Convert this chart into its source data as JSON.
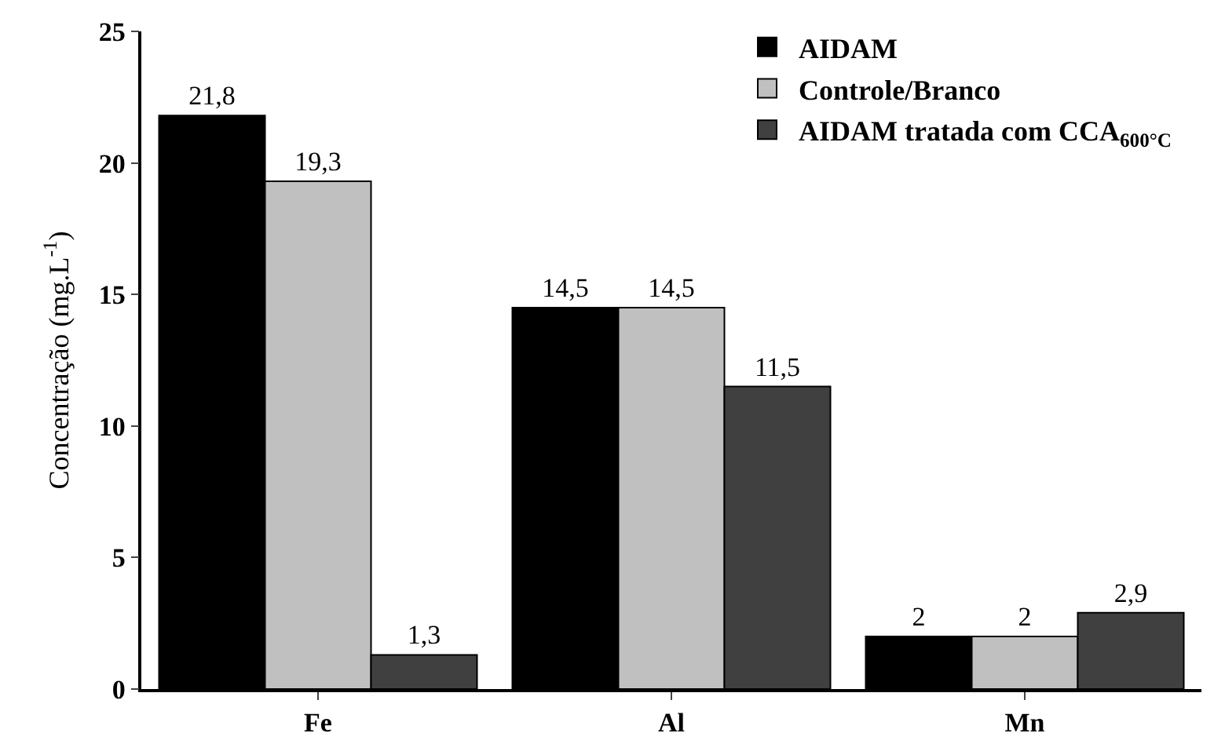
{
  "chart_data": {
    "type": "bar",
    "ylabel": "Concentração (mg.L$^{-1}$)",
    "categories": [
      "Fe",
      "Al",
      "Mn"
    ],
    "series": [
      {
        "name": "AIDAM",
        "color": "#000000",
        "values": [
          21.8,
          14.5,
          2
        ],
        "value_labels": [
          "21,8",
          "14,5",
          "2"
        ]
      },
      {
        "name": "Controle/Branco",
        "color": "#c0c0c0",
        "values": [
          19.3,
          14.5,
          2
        ],
        "value_labels": [
          "19,3",
          "14,5",
          "2"
        ]
      },
      {
        "name": "AIDAM tratada com CCA$_{600°C}$",
        "color": "#404040",
        "values": [
          1.3,
          11.5,
          2.9
        ],
        "value_labels": [
          "1,3",
          "11,5",
          "2,9"
        ]
      }
    ],
    "ylim": [
      0,
      25
    ],
    "yticks": [
      0,
      5,
      10,
      15,
      20,
      25
    ],
    "grid": false,
    "legend": "top right"
  }
}
